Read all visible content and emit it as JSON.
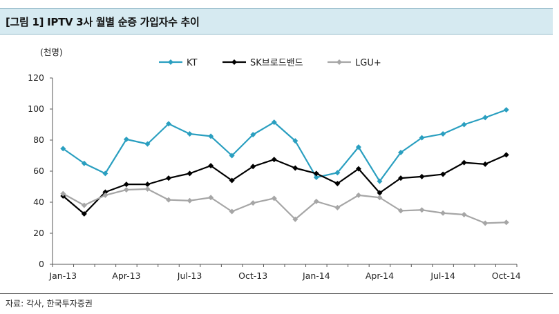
{
  "header": {
    "title": "[그림 1] IPTV 3사 월별 순증 가입자수 추이"
  },
  "footer": {
    "source": "자료: 각사, 한국투자증권"
  },
  "chart_data": {
    "type": "line",
    "title": "[그림 1] IPTV 3사 월별 순증 가입자수 추이",
    "ylabel": "(천명)",
    "ylim": [
      0,
      120
    ],
    "yticks": [
      0,
      20,
      40,
      60,
      80,
      100,
      120
    ],
    "x": [
      "Jan-13",
      "Feb-13",
      "Mar-13",
      "Apr-13",
      "May-13",
      "Jun-13",
      "Jul-13",
      "Aug-13",
      "Sep-13",
      "Oct-13",
      "Nov-13",
      "Dec-13",
      "Jan-14",
      "Feb-14",
      "Mar-14",
      "Apr-14",
      "May-14",
      "Jun-14",
      "Jul-14",
      "Aug-14",
      "Sep-14",
      "Oct-14"
    ],
    "xtick_labels": [
      "Jan-13",
      "Apr-13",
      "Jul-13",
      "Oct-13",
      "Jan-14",
      "Apr-14",
      "Jul-14",
      "Oct-14"
    ],
    "legend_position": "top",
    "grid": false,
    "series": [
      {
        "name": "KT",
        "color": "#2a9fc0",
        "marker": "diamond",
        "values": [
          74.5,
          65,
          58.5,
          80.5,
          77.5,
          90.5,
          84,
          82.5,
          70,
          83.5,
          91.5,
          79.5,
          56,
          59,
          75.5,
          53.5,
          72,
          81.5,
          84,
          90,
          94.5,
          99.5
        ]
      },
      {
        "name": "SK브로드밴드",
        "color": "#000000",
        "marker": "diamond",
        "values": [
          44,
          32.5,
          46.5,
          51.5,
          51.5,
          55.5,
          58.5,
          63.5,
          54,
          63,
          67.5,
          62,
          58.5,
          52,
          61.5,
          46,
          55.5,
          56.5,
          58,
          65.5,
          64.5,
          70.5
        ]
      },
      {
        "name": "LGU+",
        "color": "#a6a6a6",
        "marker": "diamond",
        "values": [
          45.5,
          38,
          44.5,
          48,
          48.5,
          41.5,
          41,
          43,
          34,
          39.5,
          42.5,
          29,
          40.5,
          36.5,
          44.5,
          43,
          34.5,
          35,
          33,
          32,
          26.5,
          27
        ]
      }
    ]
  }
}
